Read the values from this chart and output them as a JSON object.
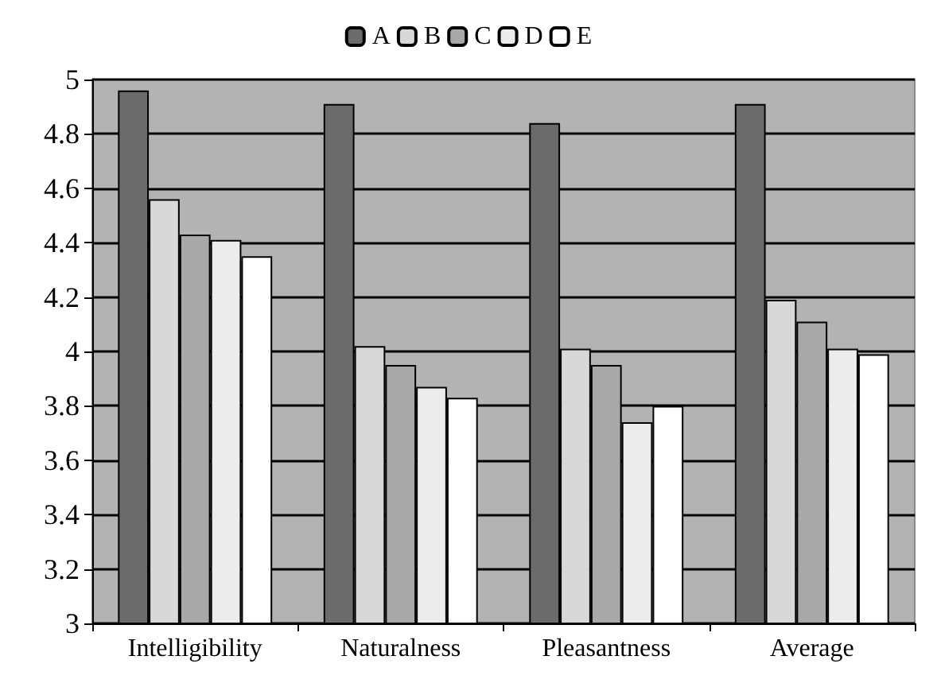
{
  "chart_data": {
    "type": "bar",
    "categories": [
      "Intelligibility",
      "Naturalness",
      "Pleasantness",
      "Average"
    ],
    "series": [
      {
        "name": "A",
        "color": "#6b6b6b",
        "values": [
          4.96,
          4.91,
          4.84,
          4.91
        ]
      },
      {
        "name": "B",
        "color": "#d8d8d8",
        "values": [
          4.56,
          4.02,
          4.01,
          4.19
        ]
      },
      {
        "name": "C",
        "color": "#a8a8a8",
        "values": [
          4.43,
          3.95,
          3.95,
          4.11
        ]
      },
      {
        "name": "D",
        "color": "#ececec",
        "values": [
          4.41,
          3.87,
          3.74,
          4.01
        ]
      },
      {
        "name": "E",
        "color": "#ffffff",
        "values": [
          4.35,
          3.83,
          3.8,
          3.99
        ]
      }
    ],
    "ylim": [
      3,
      5
    ],
    "yticks": [
      3,
      3.2,
      3.4,
      3.6,
      3.8,
      4,
      4.2,
      4.4,
      4.6,
      4.8,
      5
    ],
    "grid": "y",
    "legend": "top"
  }
}
